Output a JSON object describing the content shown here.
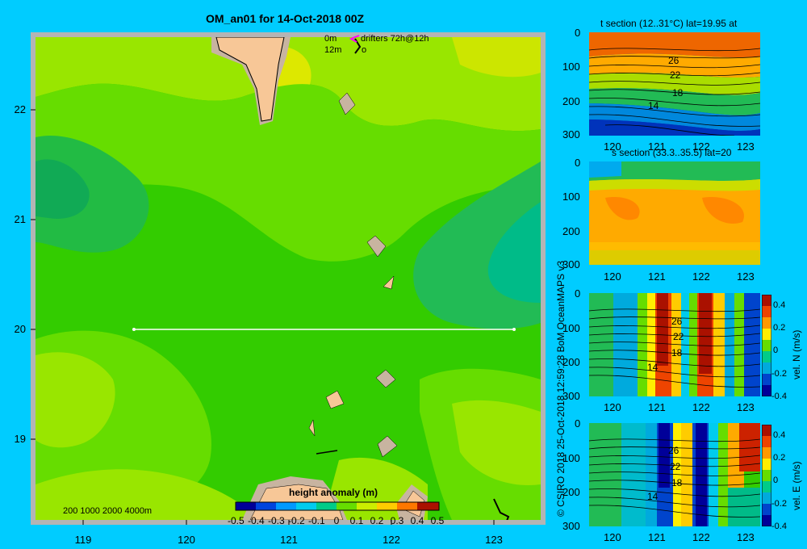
{
  "map": {
    "title": "OM_an01 for 14-Oct-2018 00Z",
    "legend_depth_0": "0m",
    "legend_depth_12": "12m",
    "legend_drifters": "drifters 72h@12h",
    "legend_drifter_symbol": "o",
    "lat_ticks": [
      "22",
      "21",
      "20",
      "19"
    ],
    "lon_ticks": [
      "119",
      "120",
      "121",
      "122",
      "123"
    ],
    "scale_bar_text": "200  1000  2000  4000m",
    "colorbar_title": "height anomaly (m)",
    "colorbar_ticks": [
      "-0.5",
      "-0.4",
      "-0.3",
      "-0.2",
      "-0.1",
      "0",
      "0.1",
      "0.2",
      "0.3",
      "0.4",
      "0.5"
    ],
    "section_line": {
      "lat": 20,
      "lon_start": 119.5,
      "lon_end": 123.2
    }
  },
  "colors": {
    "background": "#00ccff",
    "land": "#f7c797",
    "shoal": "#c8b4a0",
    "frame": "#b4b4b4"
  },
  "panels": [
    {
      "name": "t-section",
      "title": "t section (12..31°C) lat=19.95 at",
      "depth_ticks": [
        "0",
        "100",
        "200",
        "300"
      ],
      "lon_ticks": [
        "120",
        "121",
        "122",
        "123"
      ],
      "contour_labels": [
        "26",
        "22",
        "18",
        "14"
      ],
      "colorbar": null
    },
    {
      "name": "s-section",
      "title": "s section (33.3..35.5) lat=20",
      "depth_ticks": [
        "0",
        "100",
        "200",
        "300"
      ],
      "lon_ticks": [
        "120",
        "121",
        "122",
        "123"
      ],
      "contour_labels": [],
      "colorbar": null
    },
    {
      "name": "vel-n-section",
      "title": "",
      "depth_ticks": [
        "0",
        "100",
        "200",
        "300"
      ],
      "lon_ticks": [
        "120",
        "121",
        "122",
        "123"
      ],
      "contour_labels": [
        "26",
        "22",
        "18",
        "14"
      ],
      "colorbar": {
        "label": "vel. N (m/s)",
        "ticks": [
          "0.4",
          "0.2",
          "0",
          "-0.2",
          "-0.4"
        ]
      }
    },
    {
      "name": "vel-e-section",
      "title": "",
      "depth_ticks": [
        "0",
        "100",
        "200",
        "300"
      ],
      "lon_ticks": [
        "120",
        "121",
        "122",
        "123"
      ],
      "contour_labels": [
        "26",
        "22",
        "18",
        "14"
      ],
      "colorbar": {
        "label": "vel. E (m/s)",
        "ticks": [
          "0.4",
          "0.2",
          "0",
          "-0.2",
          "-0.4"
        ]
      }
    }
  ],
  "vertical_caption": "© CSIRO 2018  25-Oct-2018 12:59:28 BoM OceanMAPS v3"
}
